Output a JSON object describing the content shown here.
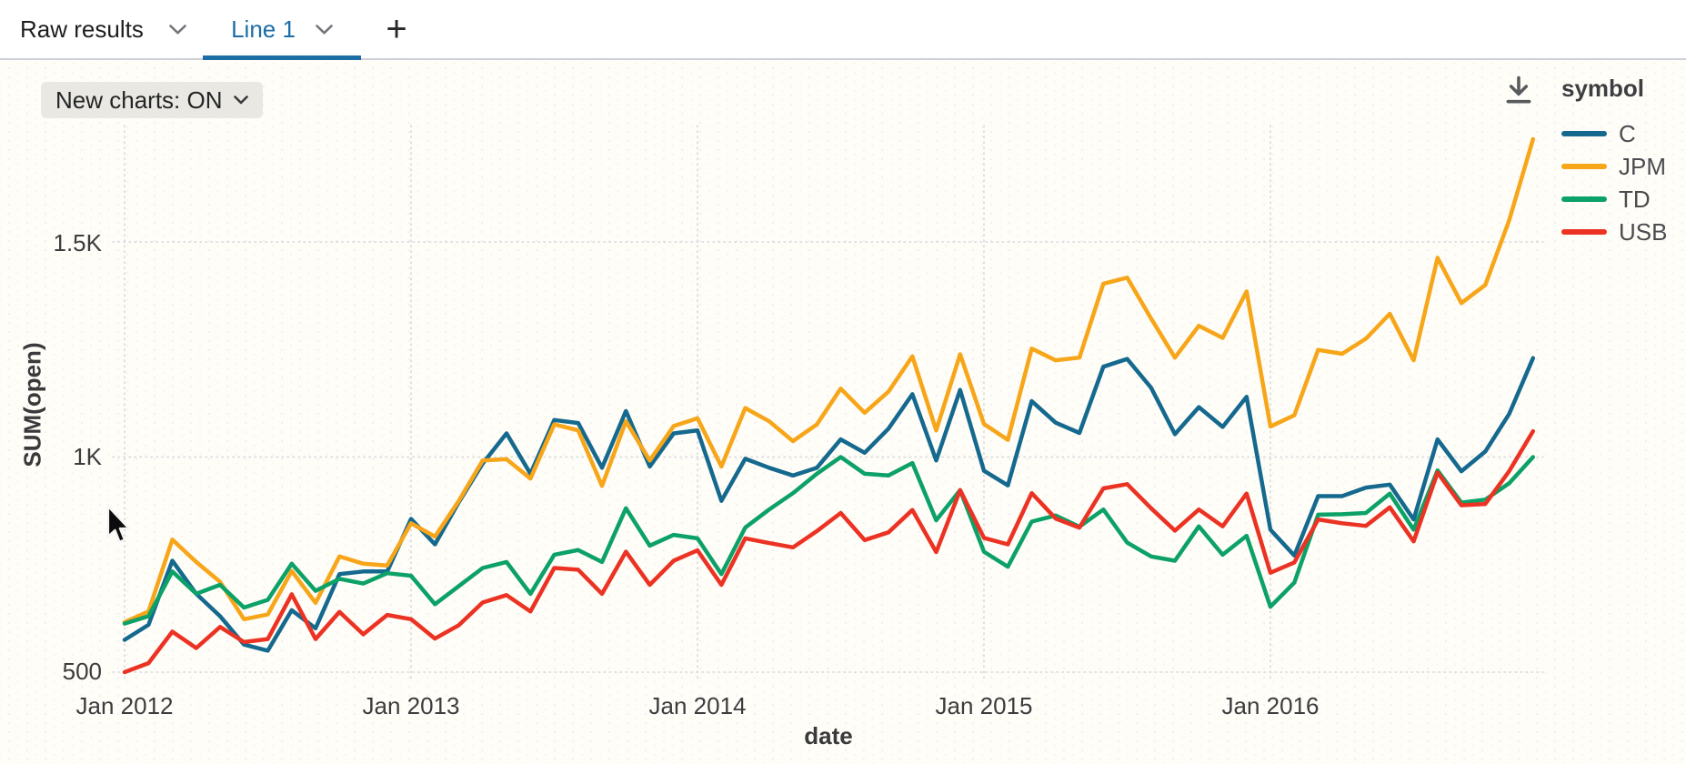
{
  "tabbar": {
    "tabs": [
      {
        "label": "Raw results",
        "active": false
      },
      {
        "label": "Line 1",
        "active": true
      }
    ],
    "add_button": "+"
  },
  "toolbar": {
    "new_charts_label": "New charts: ON"
  },
  "legend": {
    "title": "symbol"
  },
  "colors": {
    "accent_tab": "#1C6DA6",
    "series_c": "#15698E",
    "series_jpm": "#F7A519",
    "series_td": "#0CA167",
    "series_usb": "#EB3223"
  },
  "chart_data": {
    "type": "line",
    "title": "",
    "xlabel": "date",
    "ylabel": "SUM(open)",
    "x_unit": "month",
    "x_start": "Jan 2012",
    "x_end": "Dec 2016",
    "grid": "dotted",
    "legend_position": "top-right",
    "ylim": [
      450,
      1800
    ],
    "x_ticks": [
      {
        "label": "Jan 2012",
        "month_index": 0
      },
      {
        "label": "Jan 2013",
        "month_index": 12
      },
      {
        "label": "Jan 2014",
        "month_index": 24
      },
      {
        "label": "Jan 2015",
        "month_index": 36
      },
      {
        "label": "Jan 2016",
        "month_index": 48
      }
    ],
    "y_ticks": [
      {
        "label": "500",
        "value": 500
      },
      {
        "label": "1K",
        "value": 1000
      },
      {
        "label": "1.5K",
        "value": 1500
      }
    ],
    "series": [
      {
        "name": "C",
        "color": "#15698E",
        "values": [
          575,
          610,
          759,
          682,
          630,
          564,
          550,
          644,
          602,
          728,
          734,
          734,
          856,
          797,
          895,
          985,
          1055,
          961,
          1086,
          1079,
          975,
          1107,
          978,
          1055,
          1062,
          898,
          996,
          975,
          957,
          975,
          1041,
          1010,
          1066,
          1146,
          992,
          1156,
          968,
          934,
          1130,
          1080,
          1056,
          1210,
          1228,
          1161,
          1053,
          1116,
          1070,
          1140,
          831,
          771,
          909,
          909,
          929,
          936,
          855,
          1041,
          967,
          1013,
          1100,
          1230
        ]
      },
      {
        "name": "JPM",
        "color": "#F7A519",
        "values": [
          616,
          641,
          808,
          756,
          710,
          623,
          634,
          735,
          661,
          769,
          752,
          748,
          846,
          815,
          898,
          992,
          995,
          950,
          1076,
          1062,
          933,
          1083,
          992,
          1072,
          1090,
          978,
          1114,
          1083,
          1037,
          1076,
          1159,
          1103,
          1152,
          1234,
          1062,
          1239,
          1077,
          1040,
          1252,
          1225,
          1231,
          1403,
          1417,
          1322,
          1231,
          1305,
          1277,
          1385,
          1071,
          1097,
          1249,
          1240,
          1275,
          1333,
          1225,
          1463,
          1358,
          1400,
          1550,
          1739
        ]
      },
      {
        "name": "TD",
        "color": "#0CA167",
        "values": [
          613,
          630,
          734,
          682,
          703,
          650,
          668,
          752,
          689,
          717,
          706,
          730,
          724,
          658,
          700,
          742,
          756,
          682,
          773,
          784,
          756,
          881,
          794,
          819,
          811,
          728,
          836,
          878,
          916,
          961,
          1000,
          961,
          957,
          986,
          853,
          923,
          780,
          745,
          850,
          864,
          838,
          878,
          801,
          769,
          759,
          839,
          773,
          817,
          652,
          708,
          866,
          867,
          870,
          915,
          831,
          969,
          894,
          901,
          939,
          1000
        ]
      },
      {
        "name": "USB",
        "color": "#EB3223",
        "values": [
          500,
          521,
          594,
          556,
          605,
          570,
          577,
          681,
          577,
          640,
          588,
          633,
          623,
          578,
          609,
          662,
          679,
          641,
          742,
          738,
          682,
          780,
          703,
          759,
          783,
          703,
          811,
          800,
          790,
          828,
          870,
          807,
          825,
          877,
          779,
          923,
          812,
          797,
          916,
          857,
          836,
          927,
          937,
          881,
          829,
          878,
          839,
          915,
          731,
          755,
          855,
          846,
          840,
          883,
          804,
          964,
          888,
          891,
          967,
          1060
        ]
      }
    ]
  }
}
